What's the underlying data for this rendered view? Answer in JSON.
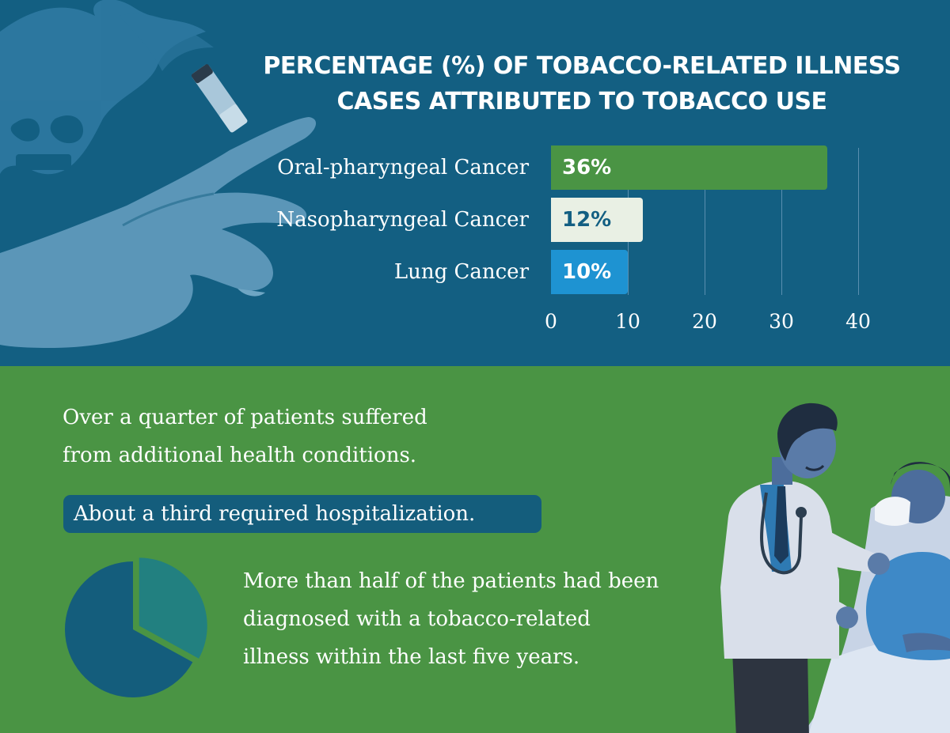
{
  "title_lines": [
    "PERCENTAGE (%) OF TOBACCO-RELATED ILLNESS",
    "CASES ATTRIBUTED TO TOBACCO USE"
  ],
  "chart_data": {
    "type": "bar",
    "orientation": "horizontal",
    "title": "PERCENTAGE (%) OF TOBACCO-RELATED ILLNESS CASES ATTRIBUTED TO TOBACCO USE",
    "categories": [
      "Oral-pharyngeal Cancer",
      "Nasopharyngeal Cancer",
      "Lung Cancer"
    ],
    "values": [
      36,
      12,
      10
    ],
    "data_labels": [
      "36%",
      "12%",
      "10%"
    ],
    "bar_colors": [
      "#4a9444",
      "#e9f0e4",
      "#1e93d2"
    ],
    "label_colors": [
      "#ffffff",
      "#135f82",
      "#ffffff"
    ],
    "xlim": [
      0,
      40
    ],
    "xticks": [
      "0",
      "10",
      "20",
      "30",
      "40"
    ],
    "grid": true
  },
  "facts": {
    "line1": "Over a quarter of patients suffered",
    "line2": "from additional health conditions.",
    "highlight": "About a third required hospitalization.",
    "half_line1": "More than half of the patients had been",
    "half_line2": "diagnosed with a tobacco-related",
    "half_line3": "illness within the last five years."
  },
  "pie_chart": {
    "type": "pie",
    "values": [
      33,
      67
    ],
    "colors": [
      "#228080",
      "#145d7c"
    ]
  },
  "icons": {
    "skull": "skull-smoke-icon",
    "hand": "hand-with-cigarette-icon",
    "doctor": "doctor-with-patient-illustration"
  }
}
